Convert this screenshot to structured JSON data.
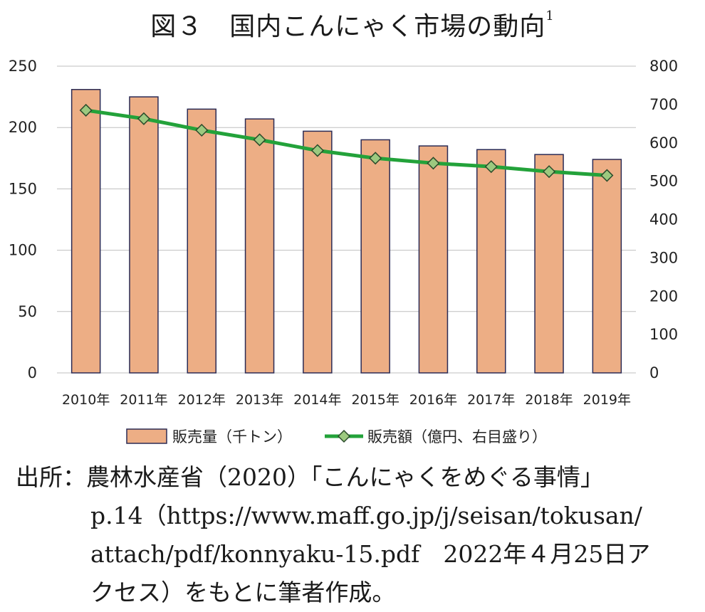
{
  "title": "図３　国内こんにゃく市場の動向",
  "title_superscript": "1",
  "chart_data": {
    "type": "bar",
    "categories": [
      "2010年",
      "2011年",
      "2012年",
      "2013年",
      "2014年",
      "2015年",
      "2016年",
      "2017年",
      "2018年",
      "2019年"
    ],
    "series": [
      {
        "name": "販売量（千トン）",
        "type": "bar",
        "axis": "left",
        "values": [
          231,
          225,
          215,
          207,
          197,
          190,
          185,
          182,
          178,
          174
        ]
      },
      {
        "name": "販売額（億円、右目盛り）",
        "type": "line",
        "axis": "right",
        "values": [
          685,
          663,
          633,
          608,
          580,
          560,
          547,
          538,
          525,
          515
        ]
      }
    ],
    "y_left": {
      "min": 0,
      "max": 250,
      "ticks": [
        "0",
        "50",
        "100",
        "150",
        "200",
        "250"
      ]
    },
    "y_right": {
      "min": 0,
      "max": 800,
      "ticks": [
        "0",
        "100",
        "200",
        "300",
        "400",
        "500",
        "600",
        "700",
        "800"
      ]
    },
    "grid": true,
    "legend_position": "bottom",
    "colors": {
      "bar_fill": "#EDAE85",
      "bar_stroke": "#2B2B55",
      "line": "#23A23A",
      "marker_fill": "#9CC97F",
      "marker_stroke": "#2B4B2B",
      "grid": "#BFBFBF"
    }
  },
  "source": {
    "line1": "出所：農林水産省（2020）「こんにゃくをめぐる事情」",
    "line2": "p.14（https://www.maff.go.jp/j/seisan/tokusan/",
    "line3": "attach/pdf/konnyaku-15.pdf　2022年４月25日ア",
    "line4": "クセス）をもとに筆者作成。"
  }
}
